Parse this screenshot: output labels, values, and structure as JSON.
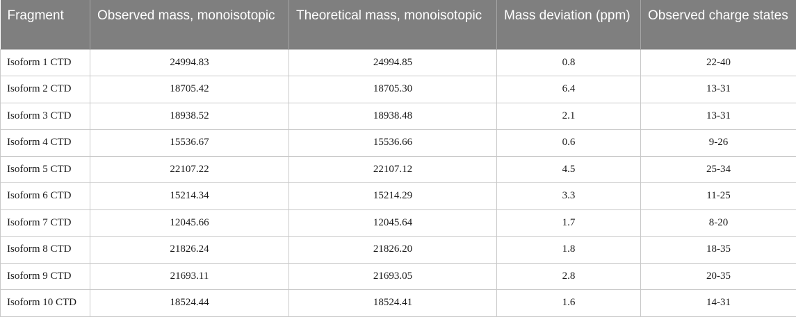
{
  "table": {
    "headers": [
      "Fragment",
      "Observed mass, monoisotopic",
      "Theoretical mass, monoisotopic",
      "Mass deviation (ppm)",
      "Observed charge states"
    ],
    "rows": [
      [
        "Isoform 1 CTD",
        "24994.83",
        "24994.85",
        "0.8",
        "22-40"
      ],
      [
        "Isoform 2 CTD",
        "18705.42",
        "18705.30",
        "6.4",
        "13-31"
      ],
      [
        "Isoform 3 CTD",
        "18938.52",
        "18938.48",
        "2.1",
        "13-31"
      ],
      [
        "Isoform 4 CTD",
        "15536.67",
        "15536.66",
        "0.6",
        "9-26"
      ],
      [
        "Isoform 5 CTD",
        "22107.22",
        "22107.12",
        "4.5",
        "25-34"
      ],
      [
        "Isoform 6 CTD",
        "15214.34",
        "15214.29",
        "3.3",
        "11-25"
      ],
      [
        "Isoform 7 CTD",
        "12045.66",
        "12045.64",
        "1.7",
        "8-20"
      ],
      [
        "Isoform 8 CTD",
        "21826.24",
        "21826.20",
        "1.8",
        "18-35"
      ],
      [
        "Isoform 9 CTD",
        "21693.11",
        "21693.05",
        "2.8",
        "20-35"
      ],
      [
        "Isoform 10 CTD",
        "18524.44",
        "18524.41",
        "1.6",
        "14-31"
      ]
    ]
  }
}
